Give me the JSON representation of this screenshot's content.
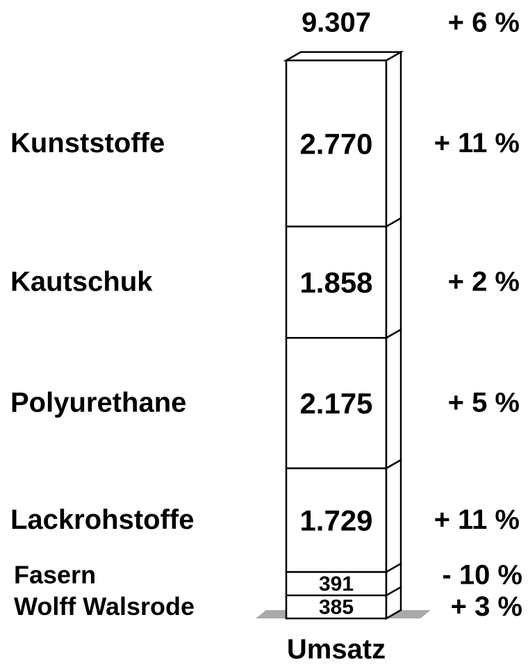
{
  "chart_data": {
    "type": "stacked_bar",
    "categories": [
      "Wolff Walsrode",
      "Fasern",
      "Lackrohstoffe",
      "Polyurethane",
      "Kautschuk",
      "Kunststoffe"
    ],
    "values": [
      385,
      391,
      1729,
      2175,
      1858,
      2770
    ],
    "value_labels": [
      "385",
      "391",
      "1.729",
      "2.175",
      "1.858",
      "2.770"
    ],
    "change_labels": [
      "+ 3 %",
      "- 10 %",
      "+ 11 %",
      "+ 5 %",
      "+ 2 %",
      "+ 11 %"
    ],
    "total": 9307,
    "total_label": "9.307",
    "total_change": "+ 6 %",
    "xlabel": "Umsatz",
    "color": "#ffffff"
  }
}
